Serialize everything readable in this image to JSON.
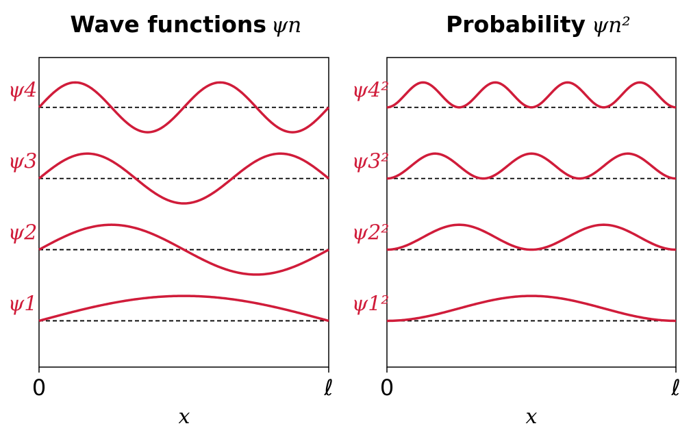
{
  "colors": {
    "curve": "#d01c3a",
    "label": "#d01c3a",
    "axis": "#000000"
  },
  "chart_data": [
    {
      "type": "line",
      "title": "Wave functions",
      "title_math": "ψn",
      "xlabel": "x",
      "x_ticks": [
        "0",
        "ℓ"
      ],
      "xlim": [
        0,
        1
      ],
      "ylim": [
        0.35,
        4.7
      ],
      "grid": false,
      "function": "sin",
      "series": [
        {
          "name": "ψ1",
          "n": 1,
          "offset": 1,
          "amplitude": 0.35
        },
        {
          "name": "ψ2",
          "n": 2,
          "offset": 2,
          "amplitude": 0.35
        },
        {
          "name": "ψ3",
          "n": 3,
          "offset": 3,
          "amplitude": 0.35
        },
        {
          "name": "ψ4",
          "n": 4,
          "offset": 4,
          "amplitude": 0.35
        }
      ]
    },
    {
      "type": "line",
      "title": "Probability",
      "title_math": "ψn²",
      "xlabel": "x",
      "x_ticks": [
        "0",
        "ℓ"
      ],
      "xlim": [
        0,
        1
      ],
      "ylim": [
        0.35,
        4.7
      ],
      "grid": false,
      "function": "sin_squared",
      "series": [
        {
          "name": "ψ1²",
          "n": 1,
          "offset": 1,
          "amplitude": 0.35
        },
        {
          "name": "ψ2²",
          "n": 2,
          "offset": 2,
          "amplitude": 0.35
        },
        {
          "name": "ψ3²",
          "n": 3,
          "offset": 3,
          "amplitude": 0.35
        },
        {
          "name": "ψ4²",
          "n": 4,
          "offset": 4,
          "amplitude": 0.35
        }
      ]
    }
  ]
}
